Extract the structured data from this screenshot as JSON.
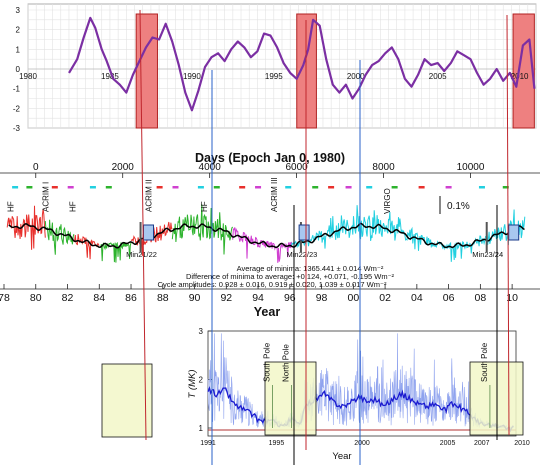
{
  "chart_data": [
    {
      "type": "line",
      "panel": "top",
      "title": "",
      "xlabel": "",
      "ylabel": "",
      "xlim": [
        1980,
        2011
      ],
      "ylim": [
        -3,
        3
      ],
      "x_ticks": [
        {
          "v": 1980,
          "label": "1980"
        },
        {
          "v": 1985,
          "label": "1985"
        },
        {
          "v": 1990,
          "label": "1990"
        },
        {
          "v": 1995,
          "label": "1995"
        },
        {
          "v": 2000,
          "label": "2000"
        },
        {
          "v": 2005,
          "label": "2005"
        },
        {
          "v": 2010,
          "label": "2010"
        }
      ],
      "y_ticks": [
        {
          "v": 3,
          "label": "3"
        },
        {
          "v": 2,
          "label": "2"
        },
        {
          "v": 1,
          "label": "1"
        },
        {
          "v": 0,
          "label": "0"
        },
        {
          "v": -1,
          "label": "-1"
        },
        {
          "v": -2,
          "label": "-2"
        },
        {
          "v": -3,
          "label": "-3"
        }
      ],
      "grid": true,
      "series_color": "#7b2fa3",
      "series": [
        {
          "name": "",
          "x": [
            1982.5,
            1983.0,
            1983.4,
            1983.8,
            1984.1,
            1984.5,
            1984.8,
            1985.2,
            1985.6,
            1986.0,
            1986.4,
            1986.8,
            1987.2,
            1987.6,
            1988.0,
            1988.4,
            1988.8,
            1989.2,
            1989.6,
            1990.0,
            1990.4,
            1990.8,
            1991.2,
            1991.6,
            1992.0,
            1992.4,
            1992.8,
            1993.2,
            1993.6,
            1994.0,
            1994.4,
            1994.8,
            1995.2,
            1995.6,
            1996.0,
            1996.4,
            1996.8,
            1997.1,
            1997.4,
            1997.8,
            1998.2,
            1998.6,
            1999.0,
            1999.4,
            1999.8,
            2000.2,
            2000.6,
            2001.0,
            2001.4,
            2001.8,
            2002.2,
            2002.6,
            2003.0,
            2003.4,
            2003.8,
            2004.2,
            2004.6,
            2005.0,
            2005.4,
            2005.8,
            2006.2,
            2006.6,
            2007.0,
            2007.4,
            2007.8,
            2008.2,
            2008.6,
            2009.0,
            2009.4,
            2009.8,
            2010.2,
            2010.6,
            2010.9
          ],
          "y": [
            -0.2,
            0.5,
            1.6,
            2.6,
            2.1,
            1.0,
            0.4,
            -0.5,
            -0.8,
            -1.2,
            -0.3,
            0.4,
            1.1,
            1.6,
            1.5,
            2.3,
            1.4,
            0.2,
            -1.2,
            -2.1,
            -1.1,
            0.1,
            0.6,
            0.8,
            0.4,
            1.0,
            1.4,
            1.1,
            0.6,
            0.9,
            1.8,
            1.7,
            1.1,
            0.3,
            -0.2,
            -0.5,
            0.2,
            1.0,
            2.5,
            2.2,
            0.5,
            -0.8,
            -1.2,
            -0.8,
            -1.5,
            -1.0,
            -0.3,
            0.2,
            0.4,
            0.8,
            1.1,
            0.5,
            -0.5,
            -0.9,
            -0.3,
            0.5,
            0.2,
            0.3,
            -0.1,
            0.3,
            0.9,
            0.7,
            0.5,
            -0.2,
            -0.8,
            -0.5,
            0.0,
            -0.6,
            -0.2,
            -0.9,
            1.2,
            1.5,
            -1.0
          ]
        }
      ]
    },
    {
      "type": "line",
      "panel": "middle",
      "title": "Days (Epoch Jan 0, 1980)",
      "xlabel": "Year",
      "ylabel": "",
      "xlim": [
        1978,
        2011
      ],
      "day_ticks": [
        {
          "v": 0,
          "label": "0"
        },
        {
          "v": 2000,
          "label": "2000"
        },
        {
          "v": 4000,
          "label": "4000"
        },
        {
          "v": 6000,
          "label": "6000"
        },
        {
          "v": 8000,
          "label": "8000"
        },
        {
          "v": 10000,
          "label": "10000"
        }
      ],
      "x_ticks": [
        {
          "v": 1978,
          "label": "78"
        },
        {
          "v": 1980,
          "label": "80"
        },
        {
          "v": 1982,
          "label": "82"
        },
        {
          "v": 1984,
          "label": "84"
        },
        {
          "v": 1986,
          "label": "86"
        },
        {
          "v": 1988,
          "label": "88"
        },
        {
          "v": 1990,
          "label": "90"
        },
        {
          "v": 1992,
          "label": "92"
        },
        {
          "v": 1994,
          "label": "94"
        },
        {
          "v": 1996,
          "label": "96"
        },
        {
          "v": 1998,
          "label": "98"
        },
        {
          "v": 2000,
          "label": "00"
        },
        {
          "v": 2002,
          "label": "02"
        },
        {
          "v": 2004,
          "label": "04"
        },
        {
          "v": 2006,
          "label": "06"
        },
        {
          "v": 2008,
          "label": "08"
        },
        {
          "v": 2010,
          "label": "10"
        }
      ],
      "instrument_labels": [
        {
          "label": "HF",
          "x": 1978.6
        },
        {
          "label": "ACRIM I",
          "x": 1980.8
        },
        {
          "label": "HF",
          "x": 1982.5
        },
        {
          "label": "ACRIM II",
          "x": 1987.3
        },
        {
          "label": "HF",
          "x": 1990.8
        },
        {
          "label": "ACRIM III",
          "x": 1995.2
        },
        {
          "label": "VIRGO",
          "x": 2002.3
        }
      ],
      "minima_labels": [
        {
          "label": "Min21/22",
          "x": 1986.6
        },
        {
          "label": "Min22/23",
          "x": 1996.7
        },
        {
          "label": "Min23/24",
          "x": 2008.4
        }
      ],
      "scale_label": "0.1%",
      "annotations": [
        "Average of minima:  1365.441 ± 0.014 Wm⁻²",
        "Difference of minima to average: +0.124, +0.071, -0.195 Wm⁻²",
        "Cycle amplitudes:  0.928 ± 0.016, 0.919 ± 0.020, 1.039 ± 0.017 Wm⁻²"
      ],
      "segment_colors": {
        "HF": "#e8302c",
        "ACRIM I": "#2db32d",
        "ACRIM II": "#2db32d",
        "ACRIM III": "#d040d0",
        "VIRGO": "#22d0e0",
        "running mean": "#000000"
      },
      "marker_colors": [
        "#22d0e0",
        "#2db32d",
        "#e8302c",
        "#d040d0"
      ]
    },
    {
      "type": "line",
      "panel": "bottom",
      "title": "",
      "xlabel": "Year",
      "ylabel": "T (MK)",
      "xlim": [
        1991,
        2009
      ],
      "ylim": [
        1,
        3
      ],
      "x_ticks": [
        {
          "v": 1991,
          "label": "1991"
        },
        {
          "v": 1995,
          "label": "1995"
        },
        {
          "v": 2000,
          "label": "2000"
        },
        {
          "v": 2005,
          "label": "2005"
        },
        {
          "v": 2007,
          "label": "2007"
        }
      ],
      "outside_tick": {
        "v": 2010,
        "label": "2010"
      },
      "y_ticks": [
        {
          "v": 1,
          "label": "1"
        },
        {
          "v": 2,
          "label": "2"
        },
        {
          "v": 3,
          "label": "3"
        }
      ],
      "vertical_labels": [
        {
          "label": "South Pole",
          "x": 1994.6
        },
        {
          "label": "North Pole",
          "x": 1995.7
        },
        {
          "label": "South Pole",
          "x": 2007.3
        }
      ],
      "series_color": "#1b1bd0",
      "series": [
        {
          "name": "",
          "x": [
            1991.0,
            1991.5,
            1992.0,
            1992.5,
            1993.0,
            1993.5,
            1994.0,
            1994.5,
            1995.0,
            1995.5,
            1995.9,
            1996.3,
            1996.8,
            1997.3,
            1997.8,
            1998.3,
            1998.8,
            1999.3,
            1999.8,
            2000.3,
            2000.8,
            2001.3,
            2001.8,
            2002.3,
            2002.8,
            2003.3,
            2003.8,
            2004.3,
            2004.8,
            2005.3,
            2005.8,
            2006.3,
            2006.8,
            2007.3,
            2007.8,
            2008.3,
            2008.8
          ],
          "y": [
            1.8,
            1.7,
            1.8,
            1.5,
            1.4,
            1.3,
            1.15,
            1.15,
            1.1,
            1.05,
            1.2,
            1.05,
            1.5,
            1.6,
            1.7,
            1.55,
            1.45,
            1.5,
            1.65,
            1.55,
            1.6,
            1.45,
            1.6,
            1.7,
            1.6,
            1.5,
            1.45,
            1.5,
            1.35,
            1.5,
            1.4,
            1.3,
            1.1,
            1.05,
            1.05,
            1.0,
            1.0
          ]
        }
      ]
    }
  ],
  "overlays": {
    "red_box_color": "#ee8080",
    "yellow_box_color": "#f2f7c8",
    "red_line_color": "#c0262d",
    "blue_line_color": "#2a62c8",
    "black_line_color": "#000000"
  }
}
